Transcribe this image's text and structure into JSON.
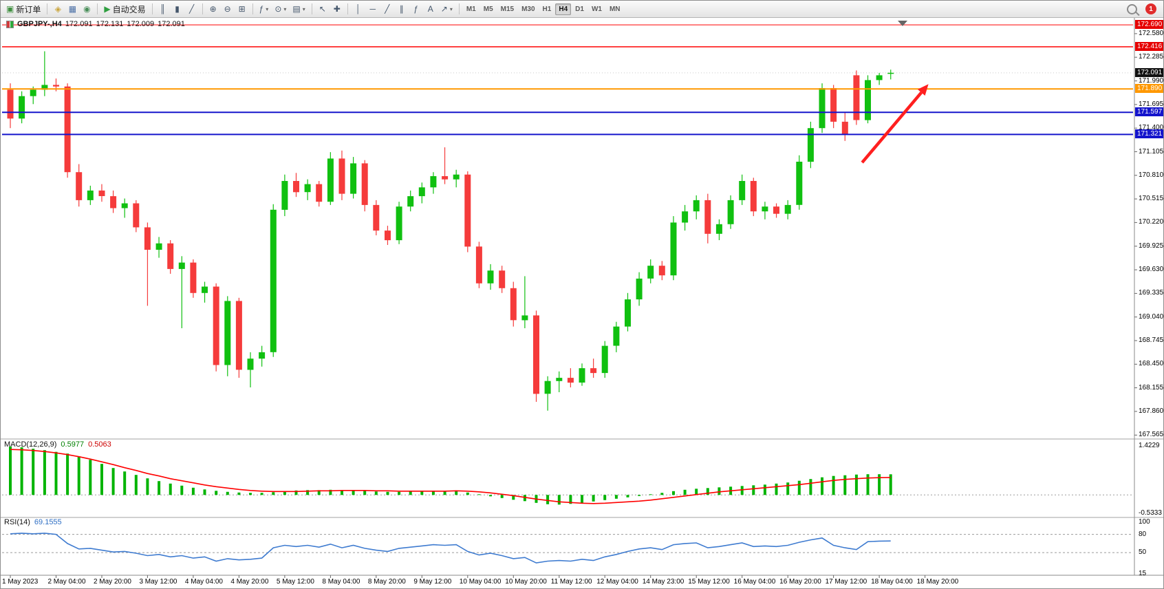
{
  "toolbar": {
    "new_order_label": "新订单",
    "autotrading_label": "自动交易",
    "timeframes": [
      "M1",
      "M5",
      "M15",
      "M30",
      "H1",
      "H4",
      "D1",
      "W1",
      "MN"
    ],
    "active_timeframe": "H4",
    "notification_count": "1",
    "icon_groups": [
      {
        "items": [
          {
            "name": "new-order-button",
            "glyph": "▣",
            "glyph_color": "#3f8f3f",
            "label": "新订单"
          }
        ]
      },
      {
        "items": [
          {
            "name": "market-watch-button",
            "glyph": "◈",
            "glyph_color": "#caa53c"
          },
          {
            "name": "data-window-button",
            "glyph": "▦",
            "glyph_color": "#4a6fa5"
          },
          {
            "name": "navigator-button",
            "glyph": "◉",
            "glyph_color": "#4a8f5a"
          }
        ]
      },
      {
        "items": [
          {
            "name": "autotrading-button",
            "glyph": "▶",
            "glyph_color": "#2e9e3f",
            "label": "自动交易"
          }
        ]
      },
      {
        "items": [
          {
            "name": "bar-chart-button",
            "glyph": "║"
          },
          {
            "name": "candlestick-chart-button",
            "glyph": "▮"
          },
          {
            "name": "line-chart-button",
            "glyph": "╱"
          }
        ]
      },
      {
        "items": [
          {
            "name": "zoom-in-button",
            "glyph": "⊕"
          },
          {
            "name": "zoom-out-button",
            "glyph": "⊖"
          },
          {
            "name": "tile-windows-button",
            "glyph": "⊞"
          }
        ]
      },
      {
        "items": [
          {
            "name": "indicators-button",
            "glyph": "ƒ",
            "caret": true
          },
          {
            "name": "periods-button",
            "glyph": "⊙",
            "caret": true
          },
          {
            "name": "templates-button",
            "glyph": "▤",
            "caret": true
          }
        ]
      },
      {
        "items": [
          {
            "name": "cursor-button",
            "glyph": "↖"
          },
          {
            "name": "crosshair-button",
            "glyph": "✚"
          }
        ]
      },
      {
        "items": [
          {
            "name": "vertical-line-button",
            "glyph": "│"
          },
          {
            "name": "horizontal-line-button",
            "glyph": "─"
          },
          {
            "name": "trendline-button",
            "glyph": "╱"
          },
          {
            "name": "channel-button",
            "glyph": "∥"
          },
          {
            "name": "fibonacci-button",
            "glyph": "ƒ"
          },
          {
            "name": "text-button",
            "glyph": "A"
          },
          {
            "name": "arrows-button",
            "glyph": "↗",
            "caret": true
          }
        ]
      }
    ]
  },
  "chart_header": {
    "symbol_period": "GBPJPY-,H4",
    "open": "172.091",
    "high": "172.131",
    "low": "172.009",
    "close": "172.091"
  },
  "indicators": {
    "macd": {
      "label": "MACD(12,26,9)",
      "value_main": "0.5977",
      "value_signal": "0.5063"
    },
    "rsi": {
      "label": "RSI(14)",
      "value": "69.1555"
    }
  },
  "colors": {
    "candle_up": "#10c010",
    "candle_down": "#f53b3b",
    "macd_histogram": "#00b400",
    "macd_signal": "#ff0000",
    "rsi_line": "#3e7bd0",
    "arrow": "#ff1f1f",
    "axis_text": "#000000"
  },
  "chart_data": {
    "type": "candlestick",
    "title": "GBPJPY-,H4",
    "symbol": "GBPJPY-",
    "period": "H4",
    "ylim": [
      167.55,
      172.76
    ],
    "current_price": 172.091,
    "candles": [
      [
        171.88,
        171.96,
        171.4,
        171.52
      ],
      [
        171.52,
        171.86,
        171.46,
        171.8
      ],
      [
        171.8,
        171.92,
        171.7,
        171.88
      ],
      [
        171.88,
        172.36,
        171.8,
        171.94
      ],
      [
        171.94,
        172.02,
        171.86,
        171.92
      ],
      [
        171.92,
        171.96,
        170.78,
        170.85
      ],
      [
        170.85,
        170.95,
        170.42,
        170.5
      ],
      [
        170.5,
        170.68,
        170.44,
        170.62
      ],
      [
        170.62,
        170.7,
        170.48,
        170.55
      ],
      [
        170.55,
        170.62,
        170.34,
        170.4
      ],
      [
        170.4,
        170.52,
        170.28,
        170.46
      ],
      [
        170.46,
        170.5,
        170.1,
        170.16
      ],
      [
        170.16,
        170.22,
        169.18,
        169.88
      ],
      [
        169.88,
        170.04,
        169.78,
        169.96
      ],
      [
        169.96,
        170.0,
        169.58,
        169.64
      ],
      [
        169.64,
        169.8,
        168.9,
        169.72
      ],
      [
        169.72,
        169.76,
        169.28,
        169.34
      ],
      [
        169.34,
        169.48,
        169.22,
        169.42
      ],
      [
        169.42,
        169.46,
        168.36,
        168.44
      ],
      [
        168.44,
        169.3,
        168.3,
        169.24
      ],
      [
        169.24,
        169.28,
        168.28,
        168.38
      ],
      [
        168.38,
        168.6,
        168.16,
        168.52
      ],
      [
        168.52,
        168.68,
        168.42,
        168.6
      ],
      [
        168.6,
        170.45,
        168.54,
        170.38
      ],
      [
        170.38,
        170.82,
        170.3,
        170.74
      ],
      [
        170.74,
        170.84,
        170.54,
        170.6
      ],
      [
        170.6,
        170.76,
        170.5,
        170.7
      ],
      [
        170.7,
        170.74,
        170.42,
        170.48
      ],
      [
        170.48,
        171.1,
        170.44,
        171.02
      ],
      [
        171.02,
        171.12,
        170.5,
        170.58
      ],
      [
        170.58,
        171.04,
        170.52,
        170.96
      ],
      [
        170.96,
        171.0,
        170.36,
        170.44
      ],
      [
        170.44,
        170.5,
        170.06,
        170.12
      ],
      [
        170.12,
        170.18,
        169.94,
        170.0
      ],
      [
        170.0,
        170.48,
        169.95,
        170.42
      ],
      [
        170.42,
        170.62,
        170.36,
        170.55
      ],
      [
        170.55,
        170.72,
        170.46,
        170.66
      ],
      [
        170.66,
        170.85,
        170.58,
        170.8
      ],
      [
        170.8,
        171.16,
        170.7,
        170.76
      ],
      [
        170.76,
        170.88,
        170.66,
        170.82
      ],
      [
        170.82,
        170.86,
        169.85,
        169.92
      ],
      [
        169.92,
        169.98,
        169.4,
        169.46
      ],
      [
        169.46,
        169.7,
        169.38,
        169.62
      ],
      [
        169.62,
        169.68,
        169.34,
        169.4
      ],
      [
        169.4,
        169.48,
        168.92,
        169.0
      ],
      [
        169.0,
        169.55,
        168.9,
        169.06
      ],
      [
        169.06,
        169.12,
        167.98,
        168.08
      ],
      [
        168.08,
        168.3,
        167.87,
        168.24
      ],
      [
        168.24,
        168.36,
        168.1,
        168.28
      ],
      [
        168.28,
        168.4,
        168.16,
        168.22
      ],
      [
        168.22,
        168.46,
        168.18,
        168.4
      ],
      [
        168.4,
        168.52,
        168.28,
        168.34
      ],
      [
        168.34,
        168.74,
        168.28,
        168.68
      ],
      [
        168.68,
        168.98,
        168.6,
        168.92
      ],
      [
        168.92,
        169.34,
        168.86,
        169.26
      ],
      [
        169.26,
        169.6,
        169.18,
        169.52
      ],
      [
        169.52,
        169.76,
        169.46,
        169.68
      ],
      [
        169.68,
        169.74,
        169.5,
        169.56
      ],
      [
        169.56,
        170.3,
        169.5,
        170.22
      ],
      [
        170.22,
        170.44,
        170.12,
        170.36
      ],
      [
        170.36,
        170.56,
        170.26,
        170.5
      ],
      [
        170.5,
        170.58,
        169.96,
        170.08
      ],
      [
        170.08,
        170.26,
        170.0,
        170.2
      ],
      [
        170.2,
        170.56,
        170.14,
        170.5
      ],
      [
        170.5,
        170.82,
        170.44,
        170.74
      ],
      [
        170.74,
        170.78,
        170.3,
        170.36
      ],
      [
        170.36,
        170.48,
        170.26,
        170.42
      ],
      [
        170.42,
        170.46,
        170.28,
        170.33
      ],
      [
        170.33,
        170.5,
        170.26,
        170.44
      ],
      [
        170.44,
        171.06,
        170.38,
        170.98
      ],
      [
        170.98,
        171.48,
        170.9,
        171.4
      ],
      [
        171.4,
        171.96,
        171.34,
        171.9
      ],
      [
        171.9,
        171.94,
        171.4,
        171.48
      ],
      [
        171.48,
        171.6,
        171.24,
        171.32
      ],
      [
        172.06,
        172.12,
        171.44,
        171.5
      ],
      [
        171.5,
        172.06,
        171.46,
        172.0
      ],
      [
        172.0,
        172.09,
        171.94,
        172.06
      ],
      [
        172.091,
        172.131,
        172.009,
        172.091
      ]
    ],
    "hlines": [
      {
        "value": 172.69,
        "color": "#ff0000",
        "w": 1
      },
      {
        "value": 172.416,
        "color": "#ff0000",
        "w": 1.5
      },
      {
        "value": 171.89,
        "color": "#ff9800",
        "w": 2
      },
      {
        "value": 171.597,
        "color": "#1414cc",
        "w": 2
      },
      {
        "value": 171.321,
        "color": "#1414cc",
        "w": 2
      }
    ],
    "price_axis": {
      "step_labels": [
        "172.580",
        "172.285",
        "171.990",
        "171.695",
        "171.400",
        "171.105",
        "170.810",
        "170.515",
        "170.220",
        "169.925",
        "169.630",
        "169.335",
        "169.040",
        "168.745",
        "168.450",
        "168.155",
        "167.860",
        "167.565"
      ],
      "special": [
        {
          "text": "172.690",
          "value": 172.69,
          "bg": "#e60000"
        },
        {
          "text": "172.416",
          "value": 172.416,
          "bg": "#e60000"
        },
        {
          "text": "172.091",
          "value": 172.091,
          "bg": "#111111"
        },
        {
          "text": "171.890",
          "value": 171.89,
          "bg": "#ff9800"
        },
        {
          "text": "171.597",
          "value": 171.597,
          "bg": "#1414cc"
        },
        {
          "text": "171.321",
          "value": 171.321,
          "bg": "#1414cc"
        }
      ]
    },
    "time_labels": [
      {
        "text": "1 May 2023",
        "i": 0
      },
      {
        "text": "2 May 04:00",
        "i": 4
      },
      {
        "text": "2 May 20:00",
        "i": 8
      },
      {
        "text": "3 May 12:00",
        "i": 12
      },
      {
        "text": "4 May 04:00",
        "i": 16
      },
      {
        "text": "4 May 20:00",
        "i": 20
      },
      {
        "text": "5 May 12:00",
        "i": 24
      },
      {
        "text": "8 May 04:00",
        "i": 28
      },
      {
        "text": "8 May 20:00",
        "i": 32
      },
      {
        "text": "9 May 12:00",
        "i": 36
      },
      {
        "text": "10 May 04:00",
        "i": 40
      },
      {
        "text": "10 May 20:00",
        "i": 44
      },
      {
        "text": "11 May 12:00",
        "i": 48
      },
      {
        "text": "12 May 04:00",
        "i": 52
      },
      {
        "text": "14 May 23:00",
        "i": 56
      },
      {
        "text": "15 May 12:00",
        "i": 60
      },
      {
        "text": "16 May 04:00",
        "i": 64
      },
      {
        "text": "16 May 20:00",
        "i": 68
      },
      {
        "text": "17 May 12:00",
        "i": 72
      },
      {
        "text": "18 May 04:00",
        "i": 76
      },
      {
        "text": "18 May 20:00",
        "i": 80
      }
    ],
    "arrow": {
      "from": {
        "candle": 74.5,
        "price": 170.97
      },
      "to": {
        "candle": 80.3,
        "price": 171.95
      }
    },
    "macd": {
      "ylim": [
        -0.5333,
        1.4229
      ],
      "axis_labels": [
        {
          "text": "1.4229",
          "value": 1.4229
        },
        {
          "text": "-0.5333",
          "value": -0.5333
        }
      ],
      "histogram": [
        1.4,
        1.38,
        1.34,
        1.3,
        1.25,
        1.2,
        1.12,
        1.02,
        0.9,
        0.78,
        0.68,
        0.58,
        0.48,
        0.4,
        0.33,
        0.27,
        0.21,
        0.16,
        0.12,
        0.09,
        0.07,
        0.06,
        0.06,
        0.08,
        0.11,
        0.13,
        0.14,
        0.14,
        0.15,
        0.14,
        0.13,
        0.12,
        0.1,
        0.09,
        0.09,
        0.1,
        0.11,
        0.12,
        0.12,
        0.11,
        0.07,
        0.02,
        -0.04,
        -0.09,
        -0.14,
        -0.18,
        -0.23,
        -0.27,
        -0.28,
        -0.26,
        -0.23,
        -0.19,
        -0.15,
        -0.11,
        -0.07,
        -0.03,
        0.02,
        0.06,
        0.11,
        0.15,
        0.18,
        0.2,
        0.22,
        0.24,
        0.26,
        0.28,
        0.3,
        0.33,
        0.36,
        0.41,
        0.46,
        0.51,
        0.55,
        0.57,
        0.59,
        0.6,
        0.6,
        0.5977
      ],
      "signal": [
        1.32,
        1.31,
        1.29,
        1.26,
        1.22,
        1.17,
        1.11,
        1.04,
        0.96,
        0.88,
        0.79,
        0.71,
        0.62,
        0.55,
        0.47,
        0.41,
        0.35,
        0.29,
        0.24,
        0.2,
        0.16,
        0.13,
        0.11,
        0.1,
        0.1,
        0.1,
        0.11,
        0.12,
        0.12,
        0.13,
        0.13,
        0.13,
        0.12,
        0.12,
        0.11,
        0.11,
        0.11,
        0.11,
        0.11,
        0.12,
        0.11,
        0.09,
        0.06,
        0.02,
        -0.02,
        -0.07,
        -0.12,
        -0.16,
        -0.2,
        -0.22,
        -0.24,
        -0.25,
        -0.24,
        -0.22,
        -0.2,
        -0.18,
        -0.15,
        -0.11,
        -0.07,
        -0.03,
        0.01,
        0.05,
        0.09,
        0.12,
        0.15,
        0.18,
        0.21,
        0.24,
        0.27,
        0.3,
        0.34,
        0.38,
        0.42,
        0.45,
        0.47,
        0.49,
        0.5,
        0.5063
      ]
    },
    "rsi": {
      "ylim": [
        15,
        100
      ],
      "levels": [
        80,
        50
      ],
      "axis_labels": [
        {
          "text": "100",
          "value": 100
        },
        {
          "text": "80",
          "value": 80
        },
        {
          "text": "50",
          "value": 50
        },
        {
          "text": "15",
          "value": 15
        }
      ],
      "values": [
        81,
        82,
        81,
        82,
        80,
        65,
        56,
        57,
        54,
        51,
        52,
        49,
        45,
        47,
        43,
        45,
        41,
        43,
        36,
        40,
        38,
        39,
        41,
        58,
        62,
        60,
        62,
        59,
        64,
        58,
        62,
        57,
        54,
        52,
        57,
        59,
        61,
        63,
        62,
        63,
        52,
        46,
        49,
        45,
        40,
        42,
        33,
        36,
        37,
        36,
        39,
        37,
        43,
        47,
        52,
        56,
        58,
        55,
        63,
        65,
        66,
        58,
        60,
        63,
        66,
        60,
        61,
        60,
        62,
        67,
        71,
        74,
        62,
        58,
        55,
        68,
        69,
        69.2
      ]
    }
  }
}
